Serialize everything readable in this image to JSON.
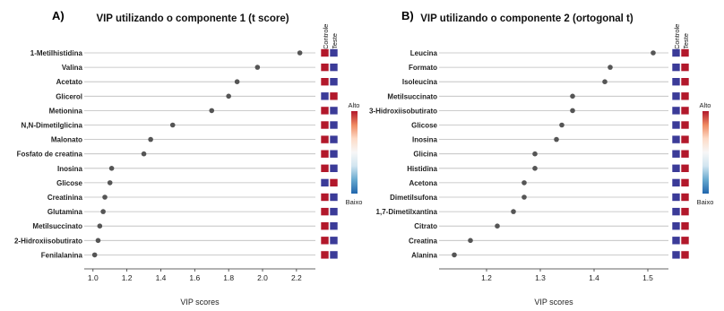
{
  "colors": {
    "high": "#b2182b",
    "low": "#3b3b98",
    "dot": "#555555",
    "line": "#bbbbbb",
    "gradient": [
      "#b2182b",
      "#ef8a62",
      "#fddbc7",
      "#f7f7f7",
      "#d1e5f0",
      "#67a9cf",
      "#2166ac"
    ]
  },
  "chart_data": [
    {
      "type": "scatter",
      "panel": "A)",
      "title": "VIP utilizando o componente 1 (t score)",
      "xlabel": "VIP scores",
      "xlim": [
        0.98,
        2.28
      ],
      "xticks": [
        "1.0",
        "1.2",
        "1.4",
        "1.6",
        "1.8",
        "2.0",
        "2.2"
      ],
      "xtick_values": [
        1.0,
        1.2,
        1.4,
        1.6,
        1.8,
        2.0,
        2.2
      ],
      "heat_headers": [
        "Controle",
        "Teste"
      ],
      "legend": {
        "high": "Alto",
        "low": "Baixo"
      },
      "rows": [
        {
          "label": "1-Metilhistidina",
          "value": 2.22,
          "heat": [
            "high",
            "low"
          ]
        },
        {
          "label": "Valina",
          "value": 1.97,
          "heat": [
            "high",
            "low"
          ]
        },
        {
          "label": "Acetato",
          "value": 1.85,
          "heat": [
            "high",
            "low"
          ]
        },
        {
          "label": "Glicerol",
          "value": 1.8,
          "heat": [
            "low",
            "high"
          ]
        },
        {
          "label": "Metionina",
          "value": 1.7,
          "heat": [
            "high",
            "low"
          ]
        },
        {
          "label": "N,N-Dimetilglicina",
          "value": 1.47,
          "heat": [
            "high",
            "low"
          ]
        },
        {
          "label": "Malonato",
          "value": 1.34,
          "heat": [
            "high",
            "low"
          ]
        },
        {
          "label": "Fosfato de creatina",
          "value": 1.3,
          "heat": [
            "high",
            "low"
          ]
        },
        {
          "label": "Inosina",
          "value": 1.11,
          "heat": [
            "high",
            "low"
          ]
        },
        {
          "label": "Glicose",
          "value": 1.1,
          "heat": [
            "low",
            "high"
          ]
        },
        {
          "label": "Creatinina",
          "value": 1.07,
          "heat": [
            "high",
            "low"
          ]
        },
        {
          "label": "Glutamina",
          "value": 1.06,
          "heat": [
            "high",
            "low"
          ]
        },
        {
          "label": "Metilsuccinato",
          "value": 1.04,
          "heat": [
            "high",
            "low"
          ]
        },
        {
          "label": "2-Hidroxiisobutirato",
          "value": 1.03,
          "heat": [
            "high",
            "low"
          ]
        },
        {
          "label": "Fenilalanina",
          "value": 1.01,
          "heat": [
            "high",
            "low"
          ]
        }
      ]
    },
    {
      "type": "scatter",
      "panel": "B)",
      "title": "VIP utilizando o componente 2 (ortogonal t)",
      "xlabel": "VIP scores",
      "xlim": [
        1.125,
        1.525
      ],
      "xticks": [
        "1.2",
        "1.3",
        "1.4",
        "1.5"
      ],
      "xtick_values": [
        1.2,
        1.3,
        1.4,
        1.5
      ],
      "heat_headers": [
        "Controle",
        "Teste"
      ],
      "legend": {
        "high": "Alto",
        "low": "Baixo"
      },
      "rows": [
        {
          "label": "Leucina",
          "value": 1.51,
          "heat": [
            "low",
            "high"
          ]
        },
        {
          "label": "Formato",
          "value": 1.43,
          "heat": [
            "low",
            "high"
          ]
        },
        {
          "label": "Isoleucina",
          "value": 1.42,
          "heat": [
            "low",
            "high"
          ]
        },
        {
          "label": "Metilsuccinato",
          "value": 1.36,
          "heat": [
            "low",
            "high"
          ]
        },
        {
          "label": "3-Hidroxiisobutirato",
          "value": 1.36,
          "heat": [
            "low",
            "high"
          ]
        },
        {
          "label": "Glicose",
          "value": 1.34,
          "heat": [
            "low",
            "high"
          ]
        },
        {
          "label": "Inosina",
          "value": 1.33,
          "heat": [
            "low",
            "high"
          ]
        },
        {
          "label": "Glicina",
          "value": 1.29,
          "heat": [
            "low",
            "high"
          ]
        },
        {
          "label": "Histidina",
          "value": 1.29,
          "heat": [
            "low",
            "high"
          ]
        },
        {
          "label": "Acetona",
          "value": 1.27,
          "heat": [
            "low",
            "high"
          ]
        },
        {
          "label": "Dimetilsufona",
          "value": 1.27,
          "heat": [
            "low",
            "high"
          ]
        },
        {
          "label": "1,7-Dimetilxantina",
          "value": 1.25,
          "heat": [
            "low",
            "high"
          ]
        },
        {
          "label": "Citrato",
          "value": 1.22,
          "heat": [
            "low",
            "high"
          ]
        },
        {
          "label": "Creatina",
          "value": 1.17,
          "heat": [
            "low",
            "high"
          ]
        },
        {
          "label": "Alanina",
          "value": 1.14,
          "heat": [
            "low",
            "high"
          ]
        }
      ]
    }
  ]
}
